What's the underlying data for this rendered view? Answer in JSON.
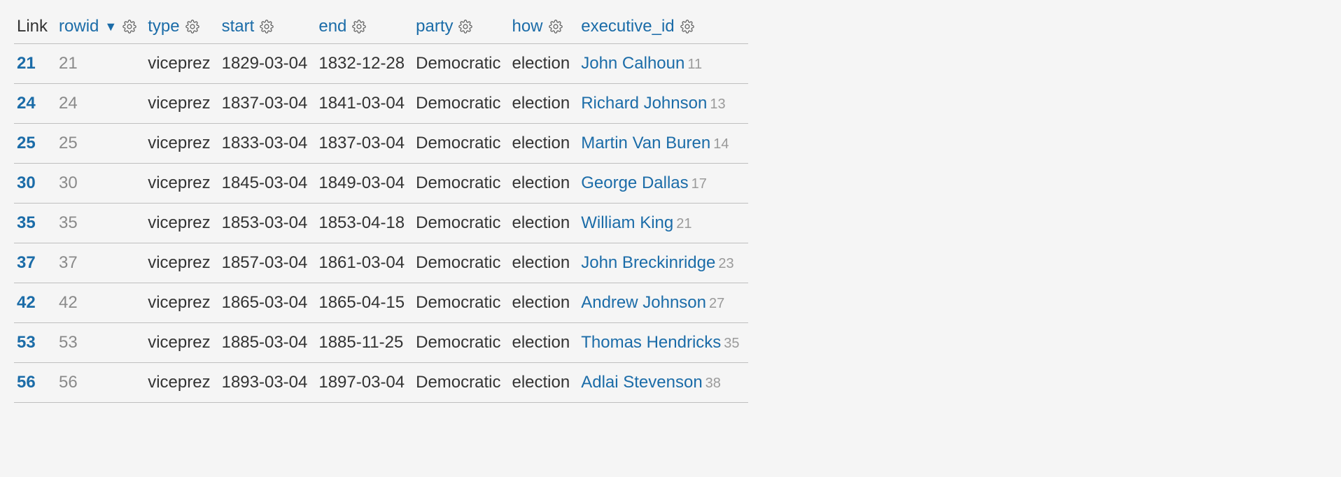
{
  "table": {
    "headers": {
      "link": {
        "label": "Link",
        "sortable": false,
        "gear": false,
        "sorted": false
      },
      "rowid": {
        "label": "rowid",
        "sortable": true,
        "gear": true,
        "sorted": true,
        "sort_indicator": "▼"
      },
      "type": {
        "label": "type",
        "sortable": true,
        "gear": true,
        "sorted": false
      },
      "start": {
        "label": "start",
        "sortable": true,
        "gear": true,
        "sorted": false
      },
      "end": {
        "label": "end",
        "sortable": true,
        "gear": true,
        "sorted": false
      },
      "party": {
        "label": "party",
        "sortable": true,
        "gear": true,
        "sorted": false
      },
      "how": {
        "label": "how",
        "sortable": true,
        "gear": true,
        "sorted": false
      },
      "executive_id": {
        "label": "executive_id",
        "sortable": true,
        "gear": true,
        "sorted": false
      }
    },
    "rows": [
      {
        "link": "21",
        "rowid": "21",
        "type": "viceprez",
        "start": "1829-03-04",
        "end": "1832-12-28",
        "party": "Democratic",
        "how": "election",
        "exec_name": "John Calhoun",
        "exec_id": "11"
      },
      {
        "link": "24",
        "rowid": "24",
        "type": "viceprez",
        "start": "1837-03-04",
        "end": "1841-03-04",
        "party": "Democratic",
        "how": "election",
        "exec_name": "Richard Johnson",
        "exec_id": "13"
      },
      {
        "link": "25",
        "rowid": "25",
        "type": "viceprez",
        "start": "1833-03-04",
        "end": "1837-03-04",
        "party": "Democratic",
        "how": "election",
        "exec_name": "Martin Van Buren",
        "exec_id": "14"
      },
      {
        "link": "30",
        "rowid": "30",
        "type": "viceprez",
        "start": "1845-03-04",
        "end": "1849-03-04",
        "party": "Democratic",
        "how": "election",
        "exec_name": "George Dallas",
        "exec_id": "17"
      },
      {
        "link": "35",
        "rowid": "35",
        "type": "viceprez",
        "start": "1853-03-04",
        "end": "1853-04-18",
        "party": "Democratic",
        "how": "election",
        "exec_name": "William King",
        "exec_id": "21"
      },
      {
        "link": "37",
        "rowid": "37",
        "type": "viceprez",
        "start": "1857-03-04",
        "end": "1861-03-04",
        "party": "Democratic",
        "how": "election",
        "exec_name": "John Breckinridge",
        "exec_id": "23"
      },
      {
        "link": "42",
        "rowid": "42",
        "type": "viceprez",
        "start": "1865-03-04",
        "end": "1865-04-15",
        "party": "Democratic",
        "how": "election",
        "exec_name": "Andrew Johnson",
        "exec_id": "27"
      },
      {
        "link": "53",
        "rowid": "53",
        "type": "viceprez",
        "start": "1885-03-04",
        "end": "1885-11-25",
        "party": "Democratic",
        "how": "election",
        "exec_name": "Thomas Hendricks",
        "exec_id": "35"
      },
      {
        "link": "56",
        "rowid": "56",
        "type": "viceprez",
        "start": "1893-03-04",
        "end": "1897-03-04",
        "party": "Democratic",
        "how": "election",
        "exec_name": "Adlai Stevenson",
        "exec_id": "38"
      }
    ]
  },
  "colors": {
    "link_color": "#1b6ca8",
    "muted_text": "#8a8a8a",
    "border": "#bfbfbf",
    "background": "#f5f5f5",
    "gear": "#666666"
  }
}
